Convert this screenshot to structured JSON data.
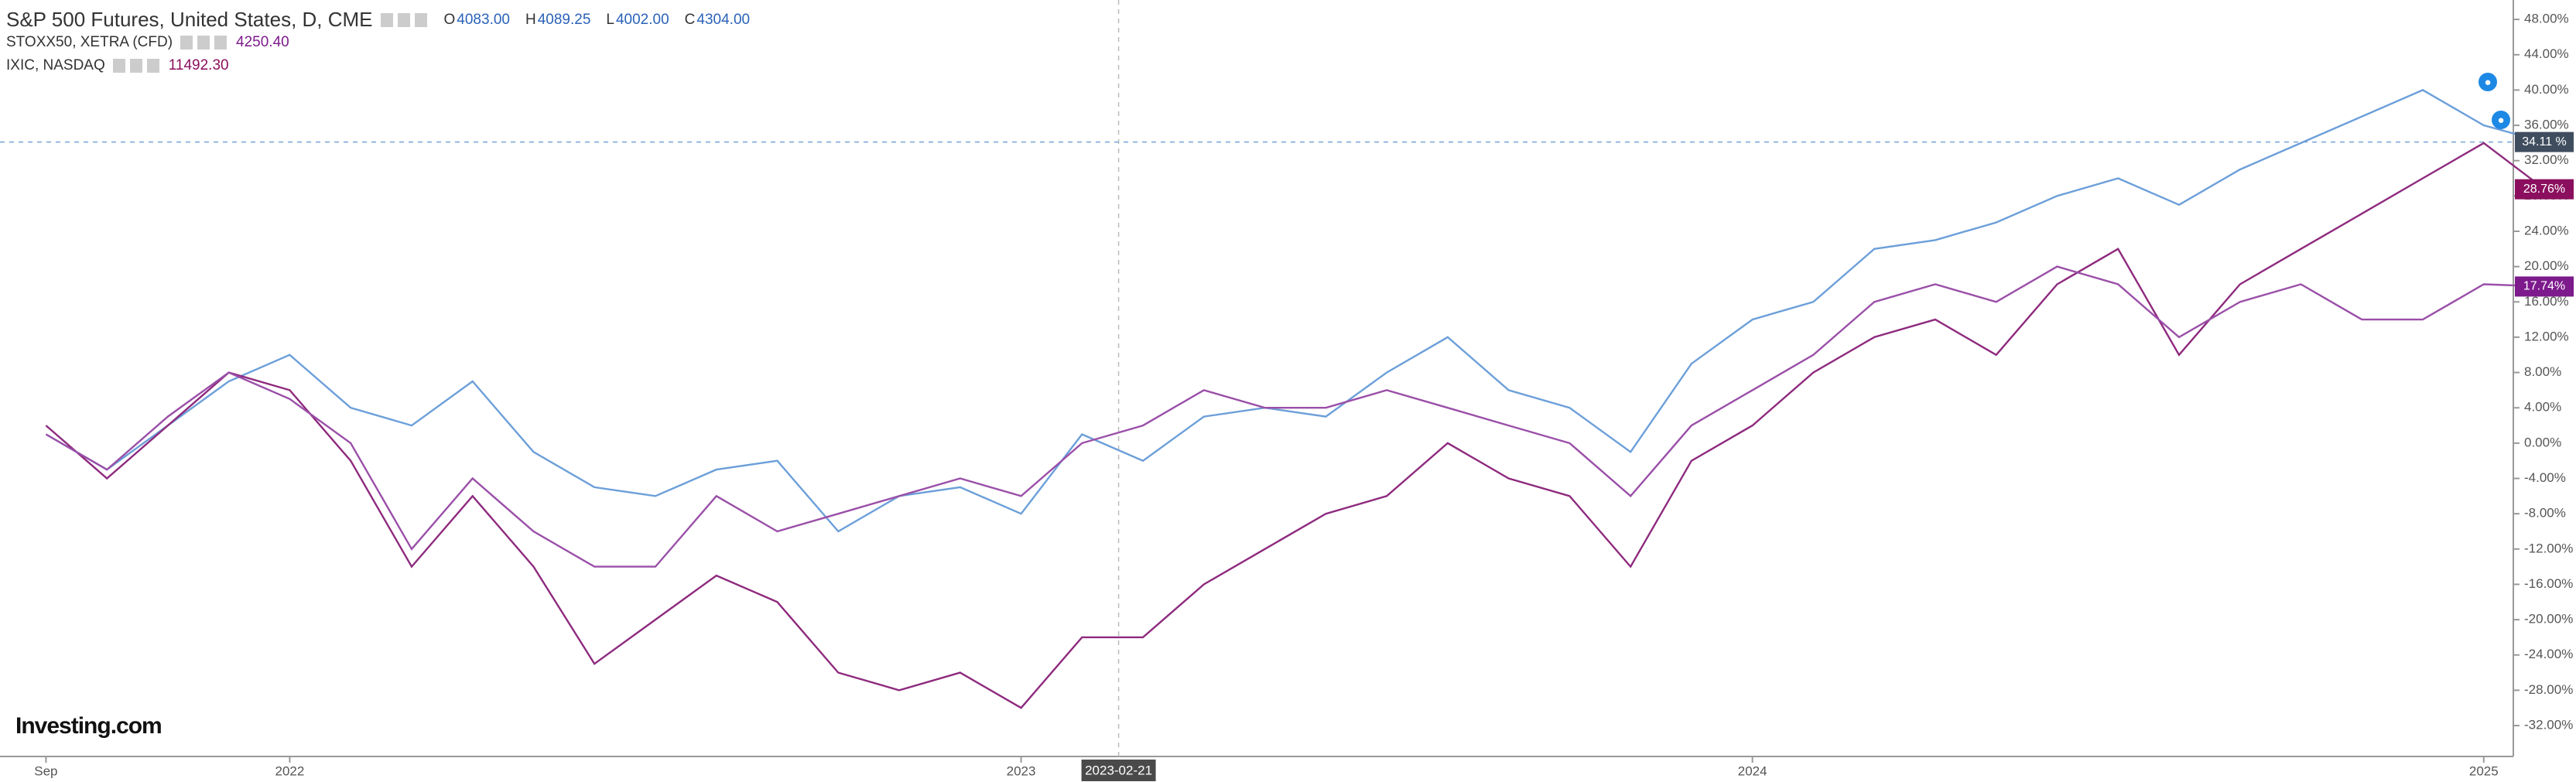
{
  "chart_data": {
    "type": "line",
    "legend_rows": [
      {
        "title": "S&P 500 Futures, United States, D, CME",
        "fields": [
          [
            "O",
            "4083.00"
          ],
          [
            "H",
            "4089.25"
          ],
          [
            "L",
            "4002.00"
          ],
          [
            "C",
            "4304.00"
          ]
        ]
      },
      {
        "title": "STOXX50, XETRA (CFD)",
        "fields": [
          [
            "4250.40"
          ]
        ]
      },
      {
        "title": "IXIC, NASDAQ",
        "fields": [
          [
            "11492.30"
          ]
        ]
      }
    ],
    "logo": "Investing.com",
    "crosshair_label": "2023-02-21",
    "categories": [
      "Sep",
      null,
      null,
      null,
      "2022",
      null,
      null,
      null,
      null,
      null,
      null,
      null,
      null,
      null,
      null,
      null,
      "2023",
      null,
      null,
      null,
      null,
      null,
      null,
      null,
      null,
      null,
      null,
      null,
      "2024",
      null,
      null,
      null,
      null,
      null,
      null,
      null,
      null,
      null,
      null,
      null,
      "2025",
      null
    ],
    "series": [
      {
        "name": "S&P 500 Futures",
        "color": "#6c9fd9",
        "tag_color": "#3f4d5e",
        "last_label": "34.11 %",
        "values": [
          1,
          -3,
          2,
          7,
          10,
          4,
          2,
          7,
          -1,
          -5,
          -6,
          -3,
          -2,
          -10,
          -6,
          -5,
          -8,
          1,
          -2,
          3,
          4,
          3,
          8,
          12,
          6,
          4,
          -1,
          9,
          14,
          16,
          22,
          23,
          25,
          28,
          30,
          27,
          31,
          34,
          37,
          40,
          36,
          34.11
        ]
      },
      {
        "name": "IXIC",
        "color": "#8e2a7e",
        "tag_color": "#8b0f5e",
        "last_label": "28.76%",
        "values": [
          2,
          -4,
          2,
          8,
          6,
          -2,
          -14,
          -6,
          -14,
          -25,
          -20,
          -15,
          -18,
          -26,
          -28,
          -26,
          -30,
          -22,
          -22,
          -16,
          -12,
          -8,
          -6,
          0,
          -4,
          -6,
          -14,
          -2,
          2,
          8,
          12,
          14,
          10,
          18,
          22,
          10,
          18,
          22,
          26,
          30,
          34,
          28.76
        ]
      },
      {
        "name": "STOXX50",
        "color": "#9a4fa8",
        "tag_color": "#7d1a8c",
        "last_label": "17.74%",
        "values": [
          1,
          -3,
          3,
          8,
          5,
          0,
          -12,
          -4,
          -10,
          -14,
          -14,
          -6,
          -10,
          -8,
          -6,
          -4,
          -6,
          0,
          2,
          6,
          4,
          4,
          6,
          4,
          2,
          0,
          -6,
          2,
          6,
          10,
          16,
          18,
          16,
          20,
          18,
          12,
          16,
          18,
          14,
          14,
          18,
          17.74
        ]
      }
    ],
    "ylim": [
      -35.5,
      50.2
    ],
    "yticks": [
      {
        "value": 48,
        "label": "48.00%"
      },
      {
        "value": 44,
        "label": "44.00%"
      },
      {
        "value": 40,
        "label": "40.00%"
      },
      {
        "value": 36,
        "label": "36.00%"
      },
      {
        "value": 32,
        "label": "32.00%"
      },
      {
        "value": 28,
        "label": "28.00%"
      },
      {
        "value": 24,
        "label": "24.00%"
      },
      {
        "value": 20,
        "label": "20.00%"
      },
      {
        "value": 16,
        "label": "16.00%"
      },
      {
        "value": 12,
        "label": "12.00%"
      },
      {
        "value": 8,
        "label": "8.00%"
      },
      {
        "value": 4,
        "label": "4.00%"
      },
      {
        "value": 0,
        "label": "0.00%"
      },
      {
        "value": -4,
        "label": "-4.00%"
      },
      {
        "value": -8,
        "label": "-8.00%"
      },
      {
        "value": -12,
        "label": "-12.00%"
      },
      {
        "value": -16,
        "label": "-16.00%"
      },
      {
        "value": -20,
        "label": "-20.00%"
      },
      {
        "value": -24,
        "label": "-24.00%"
      },
      {
        "value": -28,
        "label": "-28.00%"
      },
      {
        "value": -32,
        "label": "-32.00%"
      }
    ],
    "grid": false
  }
}
